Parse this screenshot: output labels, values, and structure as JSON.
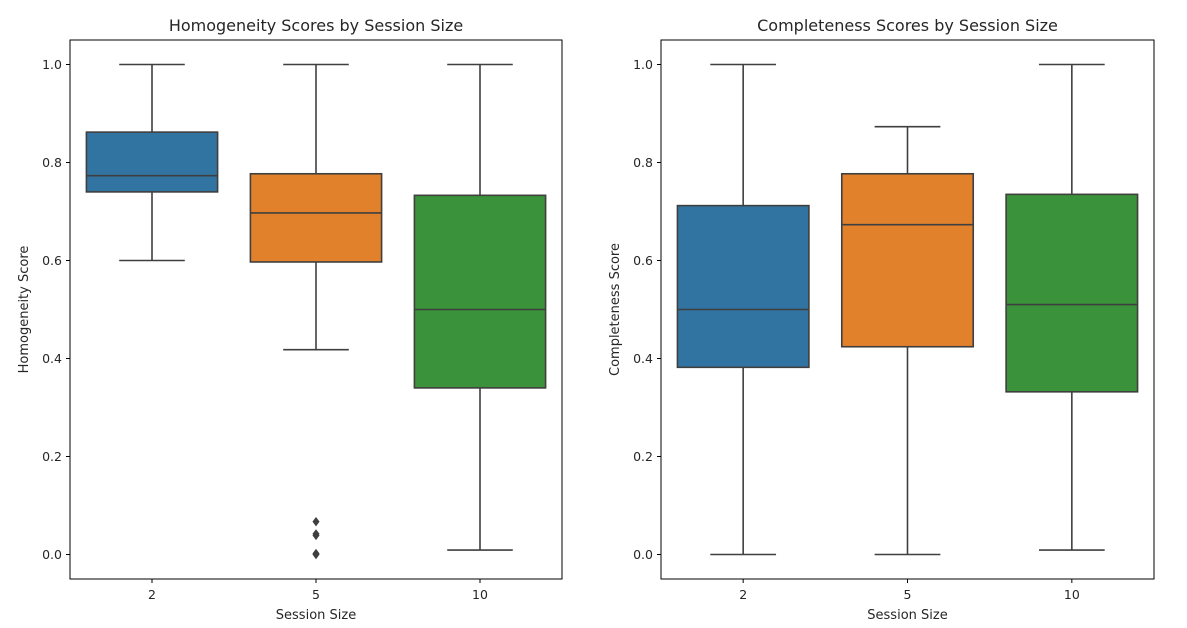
{
  "chart_data": [
    {
      "type": "box",
      "title": "Homogeneity Scores by Session Size",
      "xlabel": "Session Size",
      "ylabel": "Homogeneity Score",
      "ylim": [
        -0.05,
        1.05
      ],
      "yticks": [
        0.0,
        0.2,
        0.4,
        0.6,
        0.8,
        1.0
      ],
      "ytick_labels": [
        "0.0",
        "0.2",
        "0.4",
        "0.6",
        "0.8",
        "1.0"
      ],
      "categories": [
        "2",
        "5",
        "10"
      ],
      "colors": [
        "#3274a1",
        "#e1812c",
        "#3a923a"
      ],
      "boxes": [
        {
          "whislo": 0.6,
          "q1": 0.74,
          "med": 0.773,
          "q3": 0.862,
          "whishi": 1.0,
          "fliers": []
        },
        {
          "whislo": 0.418,
          "q1": 0.597,
          "med": 0.697,
          "q3": 0.777,
          "whishi": 1.0,
          "fliers": [
            0.067,
            0.042,
            0.039,
            0.002,
            0.0
          ]
        },
        {
          "whislo": 0.009,
          "q1": 0.34,
          "med": 0.5,
          "q3": 0.733,
          "whishi": 1.0,
          "fliers": []
        }
      ]
    },
    {
      "type": "box",
      "title": "Completeness Scores by Session Size",
      "xlabel": "Session Size",
      "ylabel": "Completeness Score",
      "ylim": [
        -0.05,
        1.05
      ],
      "yticks": [
        0.0,
        0.2,
        0.4,
        0.6,
        0.8,
        1.0
      ],
      "ytick_labels": [
        "0.0",
        "0.2",
        "0.4",
        "0.6",
        "0.8",
        "1.0"
      ],
      "categories": [
        "2",
        "5",
        "10"
      ],
      "colors": [
        "#3274a1",
        "#e1812c",
        "#3a923a"
      ],
      "boxes": [
        {
          "whislo": 0.0,
          "q1": 0.382,
          "med": 0.5,
          "q3": 0.712,
          "whishi": 1.0,
          "fliers": []
        },
        {
          "whislo": 0.0,
          "q1": 0.424,
          "med": 0.673,
          "q3": 0.777,
          "whishi": 0.873,
          "fliers": []
        },
        {
          "whislo": 0.009,
          "q1": 0.332,
          "med": 0.51,
          "q3": 0.735,
          "whishi": 1.0,
          "fliers": []
        }
      ]
    }
  ]
}
